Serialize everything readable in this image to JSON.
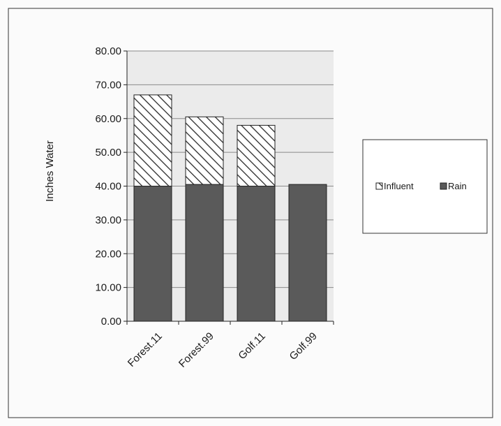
{
  "colors": {
    "rain": "#5a5a5a",
    "influent_hatch": "#2a2a2a",
    "background": "#fbfbfb",
    "plot_background": "#ebebeb",
    "gridline": "#8a8a8a"
  },
  "chart_data": {
    "type": "bar",
    "stacked": true,
    "title": "",
    "xlabel": "",
    "ylabel": "Inches Water",
    "ylim": [
      0,
      80
    ],
    "y_ticks": [
      "0.00",
      "10.00",
      "20.00",
      "30.00",
      "40.00",
      "50.00",
      "60.00",
      "70.00",
      "80.00"
    ],
    "grid": true,
    "legend_position": "right",
    "categories": [
      "Forest.11",
      "Forest.99",
      "Golf.11",
      "Golf.99"
    ],
    "series": [
      {
        "name": "Rain",
        "pattern": "solid",
        "values": [
          40.0,
          40.5,
          40.0,
          40.5
        ]
      },
      {
        "name": "Influent",
        "pattern": "hatched",
        "values": [
          27.0,
          20.0,
          18.0,
          0.0
        ]
      }
    ],
    "legend": [
      "Influent",
      "Rain"
    ]
  }
}
